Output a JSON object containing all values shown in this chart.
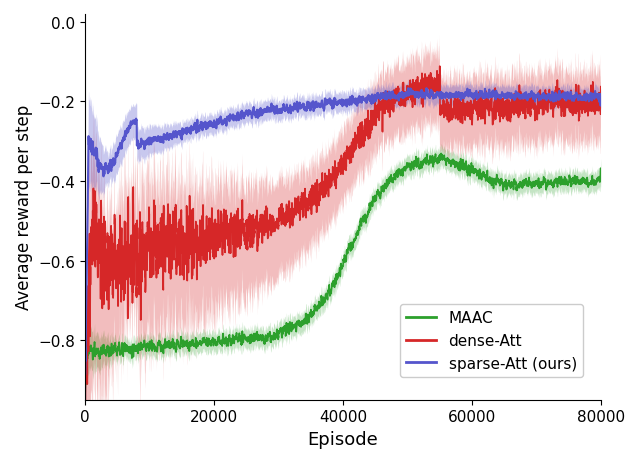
{
  "xlabel": "Episode",
  "ylabel": "Average reward per step",
  "xlim": [
    0,
    80000
  ],
  "ylim": [
    -0.95,
    0.02
  ],
  "yticks": [
    0.0,
    -0.2,
    -0.4,
    -0.6,
    -0.8
  ],
  "xticks": [
    0,
    20000,
    40000,
    60000,
    80000
  ],
  "legend_entries": [
    "MAAC",
    "dense-Att",
    "sparse-Att (ours)"
  ],
  "colors": {
    "maac": "#2ca02c",
    "dense": "#d62728",
    "sparse": "#5555cc"
  }
}
